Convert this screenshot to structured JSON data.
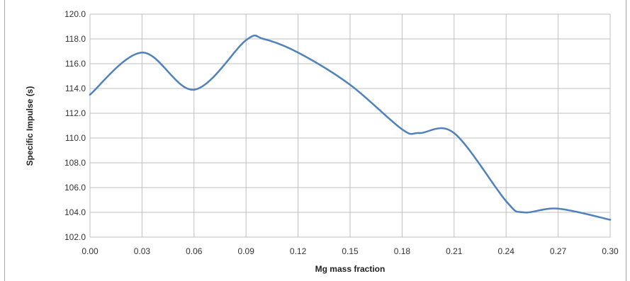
{
  "chart_data": {
    "type": "line",
    "title": "",
    "xlabel": "Mg mass fraction",
    "ylabel": "Specific Impulse (s)",
    "xlim": [
      0.0,
      0.3
    ],
    "ylim": [
      102.0,
      120.0
    ],
    "x_ticks": [
      "0.00",
      "0.03",
      "0.06",
      "0.09",
      "0.12",
      "0.15",
      "0.18",
      "0.21",
      "0.24",
      "0.27",
      "0.30"
    ],
    "y_ticks": [
      "102.0",
      "104.0",
      "106.0",
      "108.0",
      "110.0",
      "112.0",
      "114.0",
      "116.0",
      "118.0",
      "120.0"
    ],
    "grid": true,
    "legend": "none",
    "series": [
      {
        "color": "#4f81bd",
        "x": [
          0.0,
          0.03,
          0.06,
          0.09,
          0.1,
          0.12,
          0.15,
          0.18,
          0.19,
          0.21,
          0.24,
          0.25,
          0.27,
          0.3
        ],
        "y": [
          113.5,
          116.9,
          113.9,
          117.9,
          118.0,
          116.9,
          114.3,
          110.7,
          110.4,
          110.4,
          104.9,
          104.0,
          104.3,
          103.4
        ]
      }
    ]
  }
}
